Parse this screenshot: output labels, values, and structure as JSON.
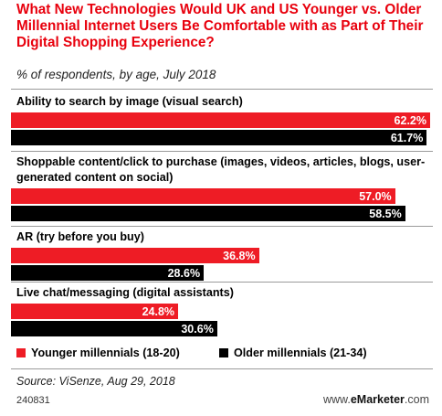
{
  "chart_data": {
    "type": "bar",
    "orientation": "horizontal",
    "title": "What New Technologies Would UK and US Younger vs. Older Millennial Internet Users Be Comfortable with as Part of Their Digital Shopping Experience?",
    "subtitle": "% of respondents, by age, July 2018",
    "categories": [
      "Ability to search by image (visual search)",
      "Shoppable content/click to purchase (images, videos, articles, blogs, user-generated content on social)",
      "AR (try before you buy)",
      "Live chat/messaging (digital assistants)"
    ],
    "series": [
      {
        "name": "Younger millennials (18-20)",
        "color": "#ee1c25",
        "values": [
          62.2,
          57.0,
          36.8,
          24.8
        ],
        "labels": [
          "62.2%",
          "57.0%",
          "36.8%",
          "24.8%"
        ]
      },
      {
        "name": "Older millennials (21-34)",
        "color": "#000000",
        "values": [
          61.7,
          58.5,
          28.6,
          30.6
        ],
        "labels": [
          "61.7%",
          "58.5%",
          "28.6%",
          "30.6%"
        ]
      }
    ],
    "legend_position": "bottom",
    "grid": false,
    "xlim": [
      0,
      62.2
    ]
  },
  "footer": {
    "source": "Source: ViSenze, Aug 29, 2018",
    "code": "240831",
    "brand_prefix": "www.",
    "brand_name": "eMarketer",
    "brand_suffix": ".com"
  }
}
